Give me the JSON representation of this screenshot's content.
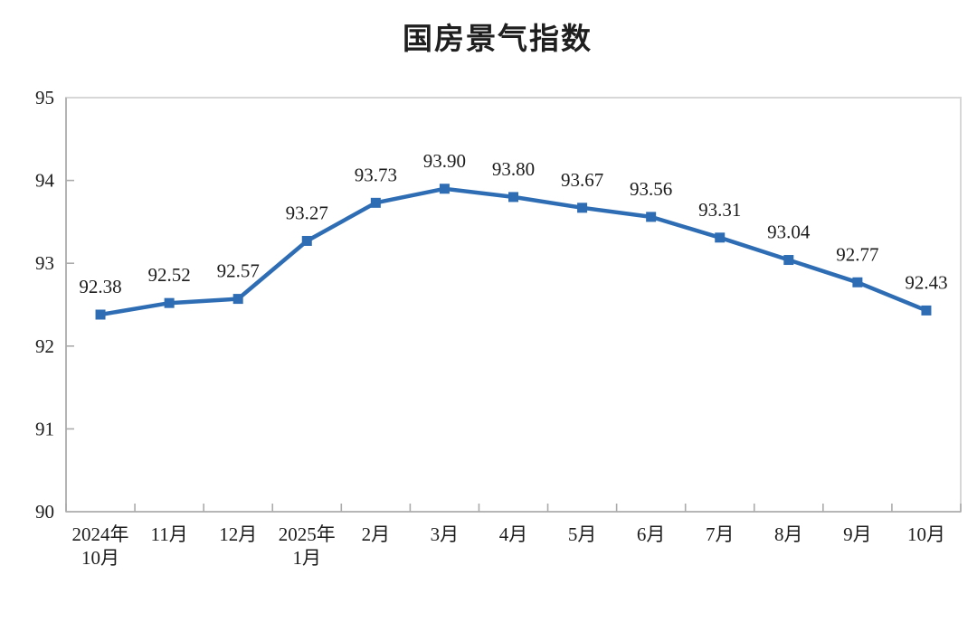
{
  "page": {
    "background": "#ffffff"
  },
  "chart_data": {
    "type": "line",
    "title": "国房景气指数",
    "categories": [
      "2024年\n10月",
      "11月",
      "12月",
      "2025年\n1月",
      "2月",
      "3月",
      "4月",
      "5月",
      "6月",
      "7月",
      "8月",
      "9月",
      "10月"
    ],
    "values": [
      92.38,
      92.52,
      92.57,
      93.27,
      93.73,
      93.9,
      93.8,
      93.67,
      93.56,
      93.31,
      93.04,
      92.77,
      92.43
    ],
    "y_ticks": [
      90,
      91,
      92,
      93,
      94,
      95
    ],
    "ylim": [
      90,
      95
    ],
    "grid": false,
    "legend": "none",
    "data_labels_visible": true,
    "data_label_decimals": 2,
    "marker": "square",
    "line_color": "#2E6DB4",
    "marker_color": "#2E6DB4",
    "plot_border_color": "#D7D7D7",
    "axis_line_color": "#ABABAB",
    "tick_color": "#ABABAB",
    "text_color": "#1c1c1c"
  }
}
